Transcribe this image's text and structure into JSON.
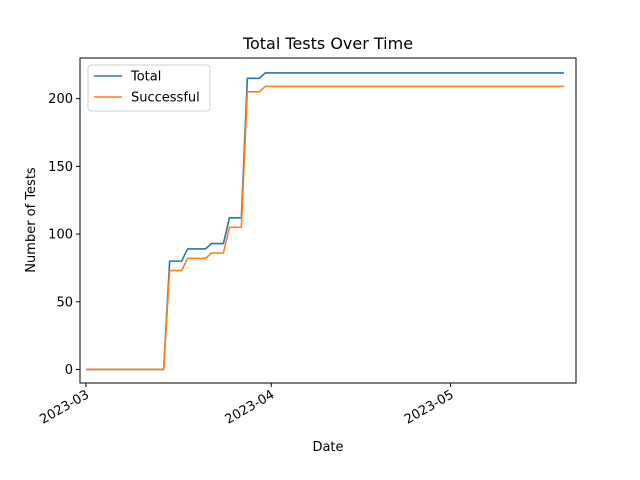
{
  "chart_data": {
    "type": "line",
    "title": "Total Tests Over Time",
    "xlabel": "Date",
    "ylabel": "Number of Tests",
    "x_axis_type": "date",
    "xlim": [
      "2023-02-28",
      "2023-05-22"
    ],
    "ylim": [
      -10,
      230
    ],
    "x_ticks": [
      {
        "date": "2023-03-01",
        "label": "2023-03"
      },
      {
        "date": "2023-04-01",
        "label": "2023-04"
      },
      {
        "date": "2023-05-01",
        "label": "2023-05"
      }
    ],
    "y_ticks": [
      0,
      50,
      100,
      150,
      200
    ],
    "grid": false,
    "legend_position": "upper-left",
    "series": [
      {
        "name": "Total",
        "color": "#1f77b4",
        "points": [
          [
            "2023-03-01",
            0
          ],
          [
            "2023-03-14",
            0
          ],
          [
            "2023-03-15",
            80
          ],
          [
            "2023-03-17",
            80
          ],
          [
            "2023-03-18",
            89
          ],
          [
            "2023-03-21",
            89
          ],
          [
            "2023-03-22",
            93
          ],
          [
            "2023-03-24",
            93
          ],
          [
            "2023-03-25",
            112
          ],
          [
            "2023-03-27",
            112
          ],
          [
            "2023-03-28",
            215
          ],
          [
            "2023-03-30",
            215
          ],
          [
            "2023-03-31",
            219
          ],
          [
            "2023-05-20",
            219
          ]
        ]
      },
      {
        "name": "Successful",
        "color": "#ff7f0e",
        "points": [
          [
            "2023-03-01",
            0
          ],
          [
            "2023-03-14",
            0
          ],
          [
            "2023-03-15",
            73
          ],
          [
            "2023-03-17",
            73
          ],
          [
            "2023-03-18",
            82
          ],
          [
            "2023-03-21",
            82
          ],
          [
            "2023-03-22",
            86
          ],
          [
            "2023-03-24",
            86
          ],
          [
            "2023-03-25",
            105
          ],
          [
            "2023-03-27",
            105
          ],
          [
            "2023-03-28",
            205
          ],
          [
            "2023-03-30",
            205
          ],
          [
            "2023-03-31",
            209
          ],
          [
            "2023-05-20",
            209
          ]
        ]
      }
    ]
  }
}
